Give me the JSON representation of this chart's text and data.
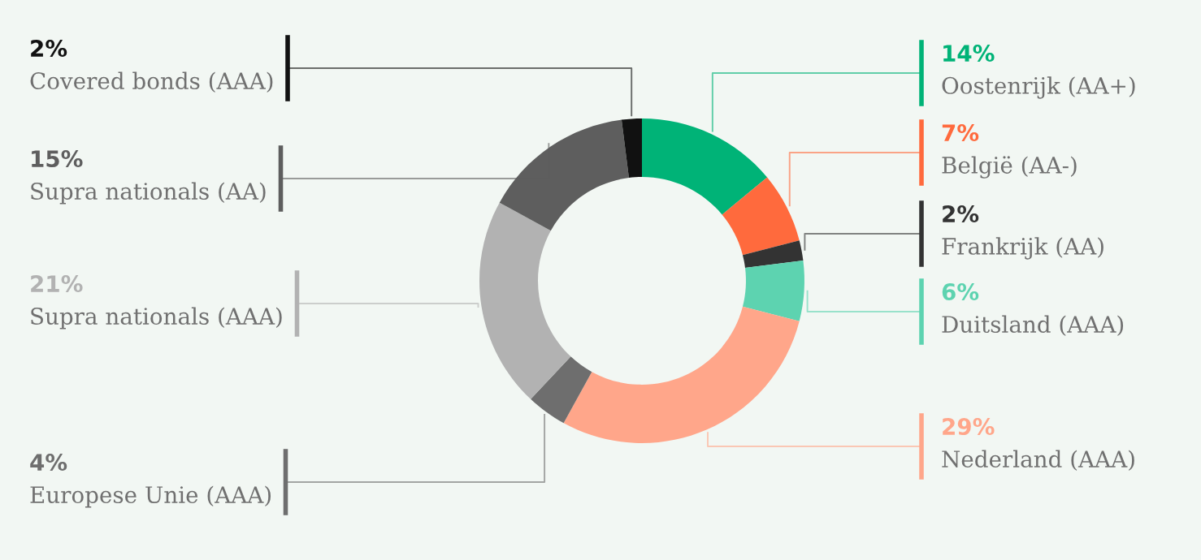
{
  "chart_data": {
    "type": "donut",
    "categories": [
      "Oostenrijk (AA+)",
      "België (AA-)",
      "Frankrijk (AA)",
      "Duitsland (AAA)",
      "Nederland (AAA)",
      "Europese Unie (AAA)",
      "Supra nationals (AAA)",
      "Supra nationals (AA)",
      "Covered bonds (AAA)"
    ],
    "values": [
      14,
      7,
      2,
      6,
      29,
      4,
      21,
      15,
      2
    ],
    "value_labels": [
      "14%",
      "7%",
      "2%",
      "6%",
      "29%",
      "4%",
      "21%",
      "15%",
      "2%"
    ],
    "colors": [
      "#00b377",
      "#ff6a3d",
      "#333333",
      "#5dd3b0",
      "#ffa68a",
      "#6e6e6e",
      "#b2b2b2",
      "#5e5e5e",
      "#111111"
    ],
    "legend": false
  }
}
